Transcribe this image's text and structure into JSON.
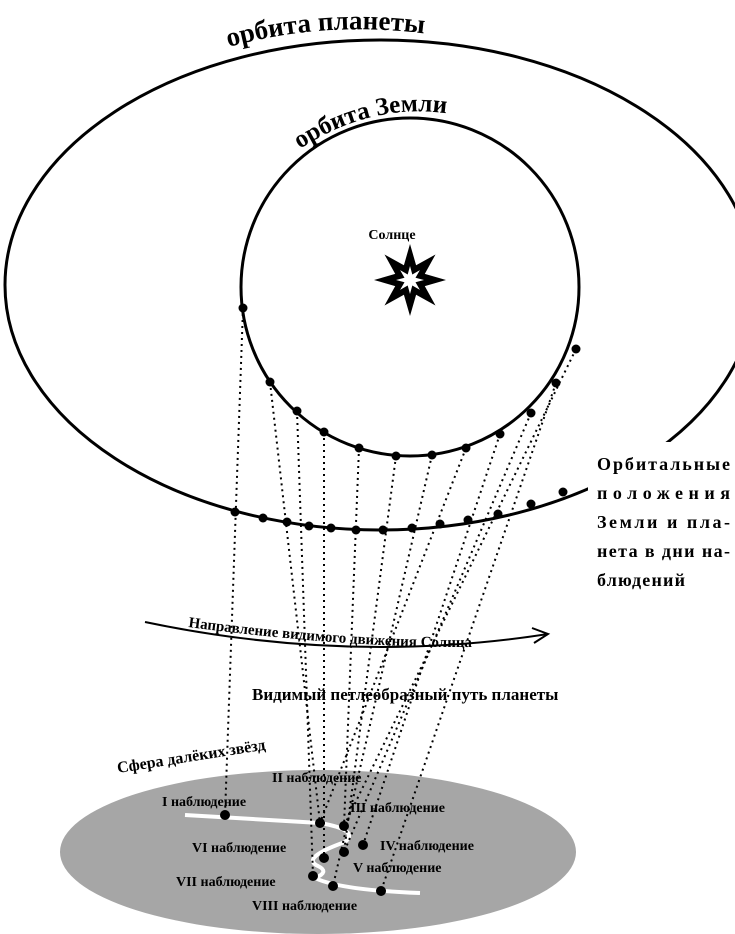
{
  "orbit_planet": "орбита планеты",
  "orbit_earth": "орбита Земли",
  "sun": "Солнце",
  "positions_note": [
    "Орбитальные",
    "положения",
    "Земли и пла-",
    "нета в дни на-",
    "блюдений"
  ],
  "sun_direction": "Направление видимого движения Солнца",
  "loop_path": "Видимый петлеобразный путь планеты",
  "sphere": "Сфера далёких звёзд",
  "observations": [
    "I наблюдение",
    "II наблюдение",
    "III наблюдение",
    "IV наблюдение",
    "V наблюдение",
    "VI наблюдение",
    "VII наблюдение",
    "VIII наблюдение"
  ]
}
